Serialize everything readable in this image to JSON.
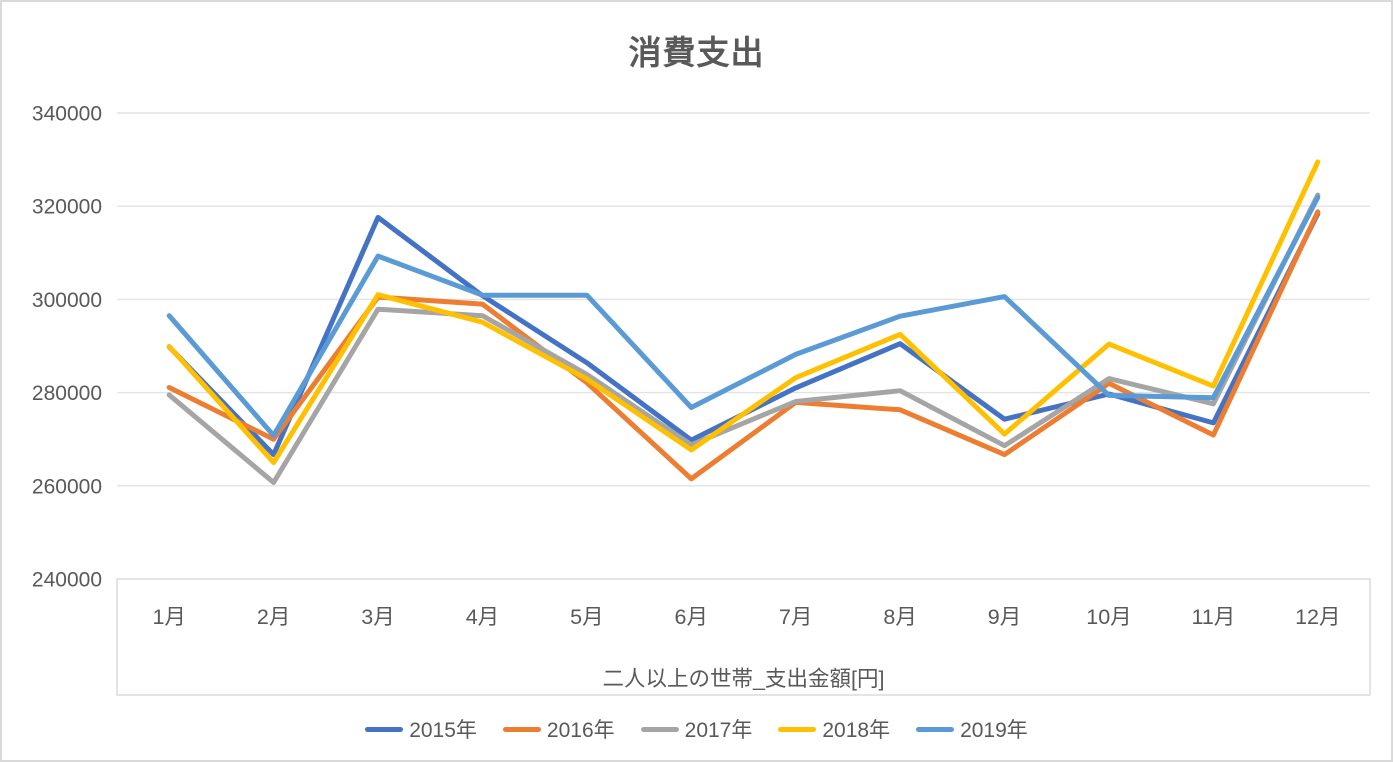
{
  "chart_data": {
    "type": "line",
    "title": "消費支出",
    "xlabel": "二人以上の世帯_支出金額[円]",
    "ylabel": "",
    "categories": [
      "1月",
      "2月",
      "3月",
      "4月",
      "5月",
      "6月",
      "7月",
      "8月",
      "9月",
      "10月",
      "11月",
      "12月"
    ],
    "series": [
      {
        "name": "2015年",
        "color": "#4472C4",
        "values": [
          289800,
          266700,
          317600,
          300800,
          286400,
          269800,
          281000,
          290500,
          274300,
          279700,
          273500,
          318400
        ]
      },
      {
        "name": "2016年",
        "color": "#ED7D31",
        "values": [
          281100,
          270000,
          300500,
          299000,
          282100,
          261500,
          277900,
          276300,
          266700,
          282000,
          270900,
          318800
        ]
      },
      {
        "name": "2017年",
        "color": "#A5A5A5",
        "values": [
          279500,
          260700,
          297900,
          296500,
          283900,
          268800,
          278100,
          280400,
          268600,
          283000,
          277600,
          322400
        ]
      },
      {
        "name": "2018年",
        "color": "#FFC000",
        "values": [
          289900,
          265000,
          301000,
          295100,
          282900,
          267700,
          283200,
          292500,
          271100,
          290400,
          281400,
          329500
        ]
      },
      {
        "name": "2019年",
        "color": "#5B9BD5",
        "values": [
          296500,
          270800,
          309300,
          300900,
          300900,
          276800,
          288200,
          296400,
          300600,
          279400,
          278900,
          321900
        ]
      }
    ],
    "ylim": [
      240000,
      340000
    ],
    "y_ticks": [
      340000,
      320000,
      300000,
      280000,
      260000,
      240000
    ],
    "grid": true,
    "legend_position": "bottom"
  },
  "theme": {
    "axis_text_color": "#595959",
    "gridline_color": "#E3E3E3",
    "border_color": "#D9D9D9",
    "background": "#FFFFFF"
  }
}
